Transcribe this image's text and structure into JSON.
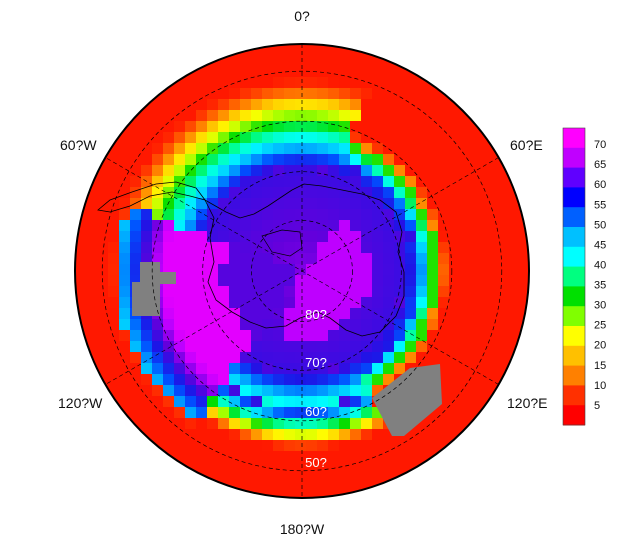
{
  "map": {
    "projection": "south polar stereographic",
    "longitude_labels": {
      "top": "0?",
      "upper_right": "60?E",
      "lower_right": "120?E",
      "bottom": "180?W",
      "lower_left": "120?W",
      "upper_left": "60?W"
    },
    "latitude_labels": [
      "80?",
      "70?",
      "60?",
      "50?"
    ],
    "no_data_color": "#808080",
    "graticule": "dashed"
  },
  "colorbar": {
    "ticks": [
      "70",
      "65",
      "60",
      "55",
      "50",
      "45",
      "40",
      "35",
      "30",
      "25",
      "20",
      "15",
      "10",
      "5"
    ],
    "colors_top_to_bottom": [
      "#ff00ff",
      "#c000ff",
      "#6000ff",
      "#0000ff",
      "#0060ff",
      "#00c0ff",
      "#00ffff",
      "#00ff80",
      "#00e000",
      "#80ff00",
      "#ffff00",
      "#ffc000",
      "#ff8000",
      "#ff3000",
      "#ff0000"
    ]
  }
}
